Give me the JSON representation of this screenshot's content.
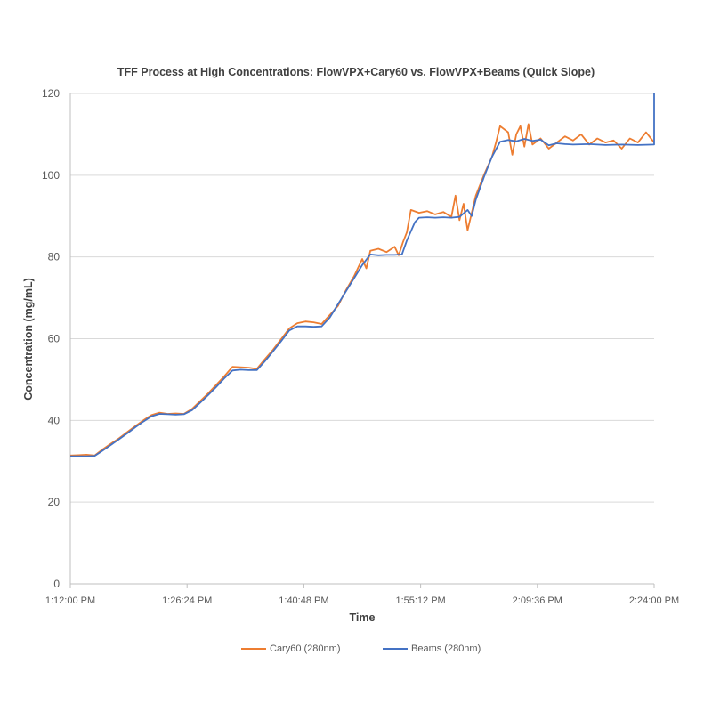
{
  "chart_data": {
    "type": "line",
    "title": "TFF Process at High Concentrations: FlowVPX+Cary60 vs. FlowVPX+Beams (Quick Slope)",
    "xlabel": "Time",
    "ylabel": "Concentration (mg/mL)",
    "x_unit": "minutes after 1:12:00 PM",
    "xlim": [
      0,
      72
    ],
    "ylim": [
      0,
      120
    ],
    "yticks": [
      0,
      20,
      40,
      60,
      80,
      100,
      120
    ],
    "xticks": [
      0,
      14.4,
      28.8,
      43.2,
      57.6,
      72
    ],
    "xtick_labels": [
      "1:12:00 PM",
      "1:26:24 PM",
      "1:40:48 PM",
      "1:55:12 PM",
      "2:09:36 PM",
      "2:24:00 PM"
    ],
    "grid": "horizontal",
    "legend_position": "bottom",
    "series": [
      {
        "name": "Cary60 (280nm)",
        "color": "#ED7D31",
        "points": [
          [
            0,
            31.4
          ],
          [
            1,
            31.5
          ],
          [
            2,
            31.6
          ],
          [
            3,
            31.4
          ],
          [
            4,
            32.9
          ],
          [
            5,
            34.3
          ],
          [
            6,
            35.6
          ],
          [
            7,
            37.1
          ],
          [
            8,
            38.6
          ],
          [
            9,
            40.0
          ],
          [
            10,
            41.3
          ],
          [
            11,
            41.9
          ],
          [
            12,
            41.6
          ],
          [
            13,
            41.7
          ],
          [
            14,
            41.6
          ],
          [
            15,
            42.8
          ],
          [
            16,
            44.7
          ],
          [
            17,
            46.6
          ],
          [
            18,
            48.7
          ],
          [
            19,
            50.8
          ],
          [
            20,
            53.1
          ],
          [
            21,
            53.0
          ],
          [
            22,
            52.9
          ],
          [
            23,
            52.6
          ],
          [
            24,
            55.0
          ],
          [
            25,
            57.3
          ],
          [
            26,
            59.9
          ],
          [
            27,
            62.5
          ],
          [
            28,
            63.8
          ],
          [
            29,
            64.2
          ],
          [
            30,
            64.0
          ],
          [
            31,
            63.6
          ],
          [
            32,
            65.8
          ],
          [
            33,
            68.0
          ],
          [
            34,
            71.9
          ],
          [
            35,
            75.3
          ],
          [
            36,
            79.5
          ],
          [
            36.5,
            77.2
          ],
          [
            37,
            81.5
          ],
          [
            38,
            82.0
          ],
          [
            39,
            81.2
          ],
          [
            40,
            82.5
          ],
          [
            40.5,
            80.4
          ],
          [
            41,
            83.5
          ],
          [
            41.5,
            86.0
          ],
          [
            42,
            91.5
          ],
          [
            43,
            90.8
          ],
          [
            44,
            91.2
          ],
          [
            45,
            90.4
          ],
          [
            46,
            91.0
          ],
          [
            47,
            89.8
          ],
          [
            47.5,
            95.0
          ],
          [
            48,
            89.0
          ],
          [
            48.5,
            93.0
          ],
          [
            49,
            86.5
          ],
          [
            50,
            95.0
          ],
          [
            51,
            100.0
          ],
          [
            52,
            104.5
          ],
          [
            52.5,
            108.0
          ],
          [
            53,
            112.0
          ],
          [
            54,
            110.5
          ],
          [
            54.5,
            105.0
          ],
          [
            55,
            110.0
          ],
          [
            55.5,
            112.0
          ],
          [
            56,
            107.0
          ],
          [
            56.5,
            112.5
          ],
          [
            57,
            107.5
          ],
          [
            58,
            109.0
          ],
          [
            59,
            106.5
          ],
          [
            60,
            108.0
          ],
          [
            61,
            109.5
          ],
          [
            62,
            108.5
          ],
          [
            63,
            110.0
          ],
          [
            64,
            107.5
          ],
          [
            65,
            109.0
          ],
          [
            66,
            108.0
          ],
          [
            67,
            108.5
          ],
          [
            68,
            106.5
          ],
          [
            69,
            109.0
          ],
          [
            70,
            108.0
          ],
          [
            71,
            110.5
          ],
          [
            72,
            108.0
          ]
        ]
      },
      {
        "name": "Beams (280nm)",
        "color": "#4472C4",
        "points": [
          [
            0,
            31.2
          ],
          [
            1,
            31.2
          ],
          [
            2,
            31.2
          ],
          [
            3,
            31.3
          ],
          [
            4,
            32.6
          ],
          [
            5,
            34.0
          ],
          [
            6,
            35.4
          ],
          [
            7,
            36.8
          ],
          [
            8,
            38.3
          ],
          [
            9,
            39.7
          ],
          [
            10,
            41.0
          ],
          [
            11,
            41.6
          ],
          [
            12,
            41.5
          ],
          [
            13,
            41.4
          ],
          [
            14,
            41.5
          ],
          [
            15,
            42.5
          ],
          [
            16,
            44.3
          ],
          [
            17,
            46.2
          ],
          [
            18,
            48.2
          ],
          [
            19,
            50.3
          ],
          [
            20,
            52.2
          ],
          [
            21,
            52.4
          ],
          [
            22,
            52.3
          ],
          [
            23,
            52.3
          ],
          [
            24,
            54.5
          ],
          [
            25,
            56.9
          ],
          [
            26,
            59.4
          ],
          [
            27,
            62.0
          ],
          [
            28,
            63.0
          ],
          [
            29,
            63.0
          ],
          [
            30,
            62.9
          ],
          [
            31,
            63.0
          ],
          [
            32,
            65.2
          ],
          [
            33,
            68.4
          ],
          [
            34,
            71.6
          ],
          [
            35,
            74.8
          ],
          [
            36,
            78.0
          ],
          [
            37,
            80.6
          ],
          [
            38,
            80.4
          ],
          [
            39,
            80.5
          ],
          [
            40,
            80.5
          ],
          [
            40.9,
            80.6
          ],
          [
            41.5,
            84.0
          ],
          [
            42.5,
            88.5
          ],
          [
            43,
            89.6
          ],
          [
            44,
            89.7
          ],
          [
            45,
            89.6
          ],
          [
            46,
            89.7
          ],
          [
            47,
            89.6
          ],
          [
            48,
            89.8
          ],
          [
            49,
            91.5
          ],
          [
            49.5,
            90.0
          ],
          [
            50,
            94.0
          ],
          [
            51,
            99.5
          ],
          [
            52,
            104.5
          ],
          [
            53,
            108.2
          ],
          [
            54,
            108.6
          ],
          [
            55,
            108.3
          ],
          [
            56,
            108.9
          ],
          [
            57,
            108.4
          ],
          [
            58,
            108.7
          ],
          [
            59,
            107.3
          ],
          [
            60,
            107.8
          ],
          [
            61,
            107.6
          ],
          [
            62,
            107.5
          ],
          [
            64,
            107.6
          ],
          [
            66,
            107.4
          ],
          [
            68,
            107.5
          ],
          [
            70,
            107.4
          ],
          [
            72,
            107.5
          ],
          [
            72,
            120.0
          ]
        ]
      }
    ]
  }
}
